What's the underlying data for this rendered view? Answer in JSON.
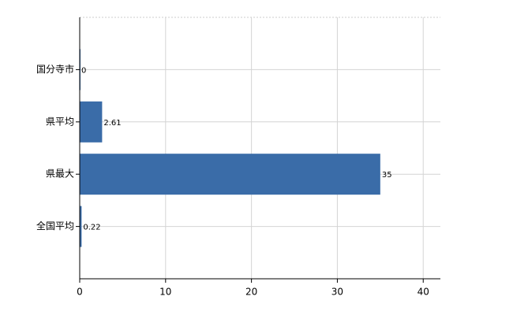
{
  "chart_data": {
    "type": "barh",
    "categories": [
      "国分寺市",
      "県平均",
      "県最大",
      "全国平均"
    ],
    "values": [
      0,
      2.61,
      35,
      0.22
    ],
    "color": "#3a6ca8",
    "xlim": [
      0,
      42
    ],
    "xticks": [
      0,
      10,
      20,
      30,
      40
    ],
    "grid": true
  }
}
